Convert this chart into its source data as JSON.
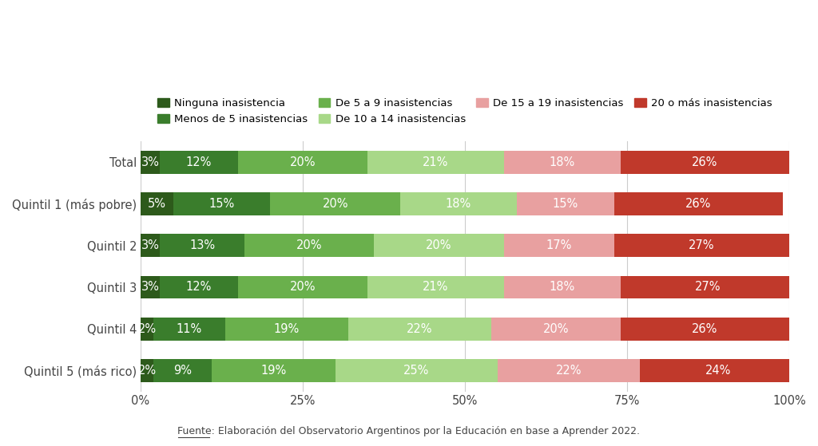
{
  "categories": [
    "Total",
    "Quintil 1 (más pobre)",
    "Quintil 2",
    "Quintil 3",
    "Quintil 4",
    "Quintil 5 (más rico)"
  ],
  "series": [
    {
      "label": "Ninguna inasistencia",
      "color": "#2d5a1b",
      "values": [
        3,
        5,
        3,
        3,
        2,
        2
      ]
    },
    {
      "label": "Menos de 5 inasistencias",
      "color": "#3a7d2c",
      "values": [
        12,
        15,
        13,
        12,
        11,
        9
      ]
    },
    {
      "label": "De 5 a 9 inasistencias",
      "color": "#6ab04c",
      "values": [
        20,
        20,
        20,
        20,
        19,
        19
      ]
    },
    {
      "label": "De 10 a 14 inasistencias",
      "color": "#a8d888",
      "values": [
        21,
        18,
        20,
        21,
        22,
        25
      ]
    },
    {
      "label": "De 15 a 19 inasistencias",
      "color": "#e8a0a0",
      "values": [
        18,
        15,
        17,
        18,
        20,
        22
      ]
    },
    {
      "label": "20 o más inasistencias",
      "color": "#c0392b",
      "values": [
        26,
        26,
        27,
        27,
        26,
        24
      ]
    }
  ],
  "xticks": [
    0,
    25,
    50,
    75,
    100
  ],
  "xtick_labels": [
    "0%",
    "25%",
    "50%",
    "75%",
    "100%"
  ],
  "source_prefix": "Fuente",
  "source_suffix": ": Elaboración del Observatorio Argentinos por la Educación en base a Aprender 2022.",
  "bg_color": "#ffffff",
  "bar_height": 0.55,
  "bar_text_color": "#ffffff",
  "axis_text_color": "#444444",
  "legend_fontsize": 9.5,
  "tick_fontsize": 10.5,
  "bar_label_fontsize": 10.5,
  "source_fontsize": 9
}
